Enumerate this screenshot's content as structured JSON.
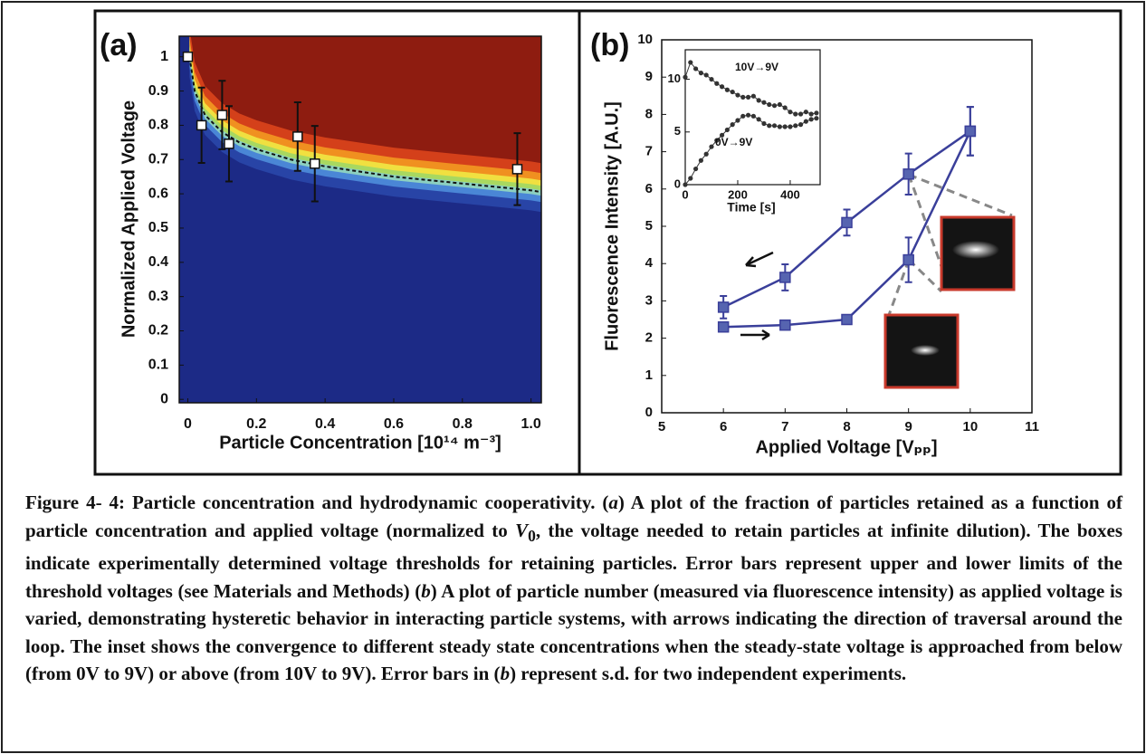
{
  "chart_data": [
    {
      "type": "scatter",
      "annotations": [
        "(a)"
      ],
      "x_label": "Particle Concentration [10¹⁴ m⁻³]",
      "y_label": "Normalized Applied Voltage",
      "xlim": [
        -0.025,
        1.03
      ],
      "ylim": [
        -0.01,
        1.06
      ],
      "xticks": [
        0,
        0.2,
        0.4,
        0.6,
        0.8,
        {
          "value": 1,
          "label": "1.0"
        }
      ],
      "yticks": [
        0,
        0.1,
        0.2,
        0.3,
        0.4,
        0.5,
        0.6,
        0.7,
        0.8,
        0.9,
        1
      ],
      "series": [
        {
          "x": [
            0,
            0.04,
            0.1,
            0.12,
            0.32,
            0.37,
            0.96
          ],
          "values": [
            1.0,
            0.8,
            0.83,
            0.746,
            0.767,
            0.688,
            0.672
          ],
          "errors": [
            null,
            0.11,
            0.1,
            0.11,
            0.1,
            0.11,
            0.105
          ],
          "marker": "square",
          "line": false,
          "color": "#ffffff"
        },
        {
          "x": [
            0.005,
            0.02,
            0.05,
            0.1,
            0.15,
            0.2,
            0.3,
            0.4,
            0.5,
            0.6,
            0.7,
            0.8,
            0.9,
            1.0,
            1.03
          ],
          "values": [
            1.0,
            0.9,
            0.83,
            0.78,
            0.75,
            0.73,
            0.7,
            0.68,
            0.665,
            0.65,
            0.64,
            0.63,
            0.62,
            0.61,
            0.605
          ],
          "line": true,
          "dashed": true,
          "color": "#111111"
        }
      ]
    },
    {
      "type": "line",
      "annotations": [
        "(b)"
      ],
      "x_label": "Applied Voltage [Vₚₚ]",
      "y_label": "Fluorescence Intensity [A.U.]",
      "xlim": [
        5,
        11
      ],
      "ylim": [
        0,
        10
      ],
      "xticks": [
        5,
        6,
        7,
        8,
        9,
        10,
        11
      ],
      "yticks": [
        0,
        1,
        2,
        3,
        4,
        5,
        6,
        7,
        8,
        9,
        10
      ],
      "series": [
        {
          "x": [
            6,
            7,
            8,
            9,
            10
          ],
          "values": [
            2.83,
            3.63,
            5.1,
            6.4,
            7.55
          ],
          "errors": [
            0.3,
            0.35,
            0.35,
            0.55,
            0.65
          ],
          "marker": "square",
          "line": true,
          "color": "#3a3f9a"
        },
        {
          "x": [
            6,
            7,
            8,
            9,
            10
          ],
          "values": [
            2.3,
            2.35,
            2.5,
            4.1,
            7.55
          ],
          "errors": [
            null,
            0.1,
            null,
            0.6,
            0.65
          ],
          "marker": "square",
          "line": true,
          "color": "#3a3f9a"
        }
      ]
    },
    {
      "type": "line",
      "annotations": [
        "10V→9V",
        "0V→9V"
      ],
      "x_label": "Time [s]",
      "xlim": [
        0,
        514
      ],
      "ylim": [
        0,
        12.8
      ],
      "xticks": [
        0,
        200,
        400
      ],
      "yticks": [
        0,
        5,
        10
      ],
      "series": [
        {
          "x": [
            0,
            20,
            40,
            60,
            80,
            100,
            120,
            140,
            160,
            180,
            200,
            220,
            240,
            260,
            280,
            300,
            320,
            340,
            360,
            380,
            400,
            420,
            440,
            460,
            480,
            500
          ],
          "values": [
            10.2,
            11.6,
            11.0,
            10.6,
            10.4,
            10.0,
            9.6,
            9.3,
            9.0,
            8.8,
            8.5,
            8.3,
            8.3,
            8.4,
            8.0,
            7.8,
            7.6,
            7.5,
            7.6,
            7.3,
            6.9,
            6.7,
            6.7,
            6.9,
            6.7,
            6.8
          ],
          "marker": "circle",
          "line": true,
          "color": "#333333"
        },
        {
          "x": [
            0,
            20,
            40,
            60,
            80,
            100,
            120,
            140,
            160,
            180,
            200,
            220,
            240,
            260,
            280,
            300,
            320,
            340,
            360,
            380,
            400,
            420,
            440,
            460,
            480,
            500
          ],
          "values": [
            0,
            0.6,
            1.5,
            2.3,
            2.9,
            3.6,
            4.2,
            4.7,
            5.2,
            5.7,
            6.1,
            6.5,
            6.6,
            6.5,
            6.2,
            5.8,
            5.6,
            5.6,
            5.5,
            5.5,
            5.5,
            5.6,
            5.7,
            6.0,
            6.2,
            6.3
          ],
          "marker": "circle",
          "line": true,
          "color": "#333333"
        }
      ]
    }
  ],
  "caption": {
    "parts": [
      "Figure 4- 4: Particle concentration and hydrodynamic cooperativity. (",
      "a",
      ") A plot of the fraction of particles retained as a function of particle concentration and applied voltage (normalized to ",
      "V",
      "0",
      ", the voltage needed to retain particles at infinite dilution).  The boxes indicate experimentally determined voltage thresholds for retaining particles.  Error bars represent upper and lower limits of the threshold voltages (see Materials and Methods)  (",
      "b",
      ") A plot of particle number (measured via fluorescence intensity) as applied voltage is varied, demonstrating hysteretic behavior in interacting particle systems, with arrows indicating the direction of traversal around the loop.  The inset shows the convergence to different steady state concentrations when the steady-state voltage is approached from below (from 0V to 9V) or above (from 10V to 9V).  Error bars in (",
      "b",
      ") represent s.d. for two independent experiments."
    ]
  }
}
